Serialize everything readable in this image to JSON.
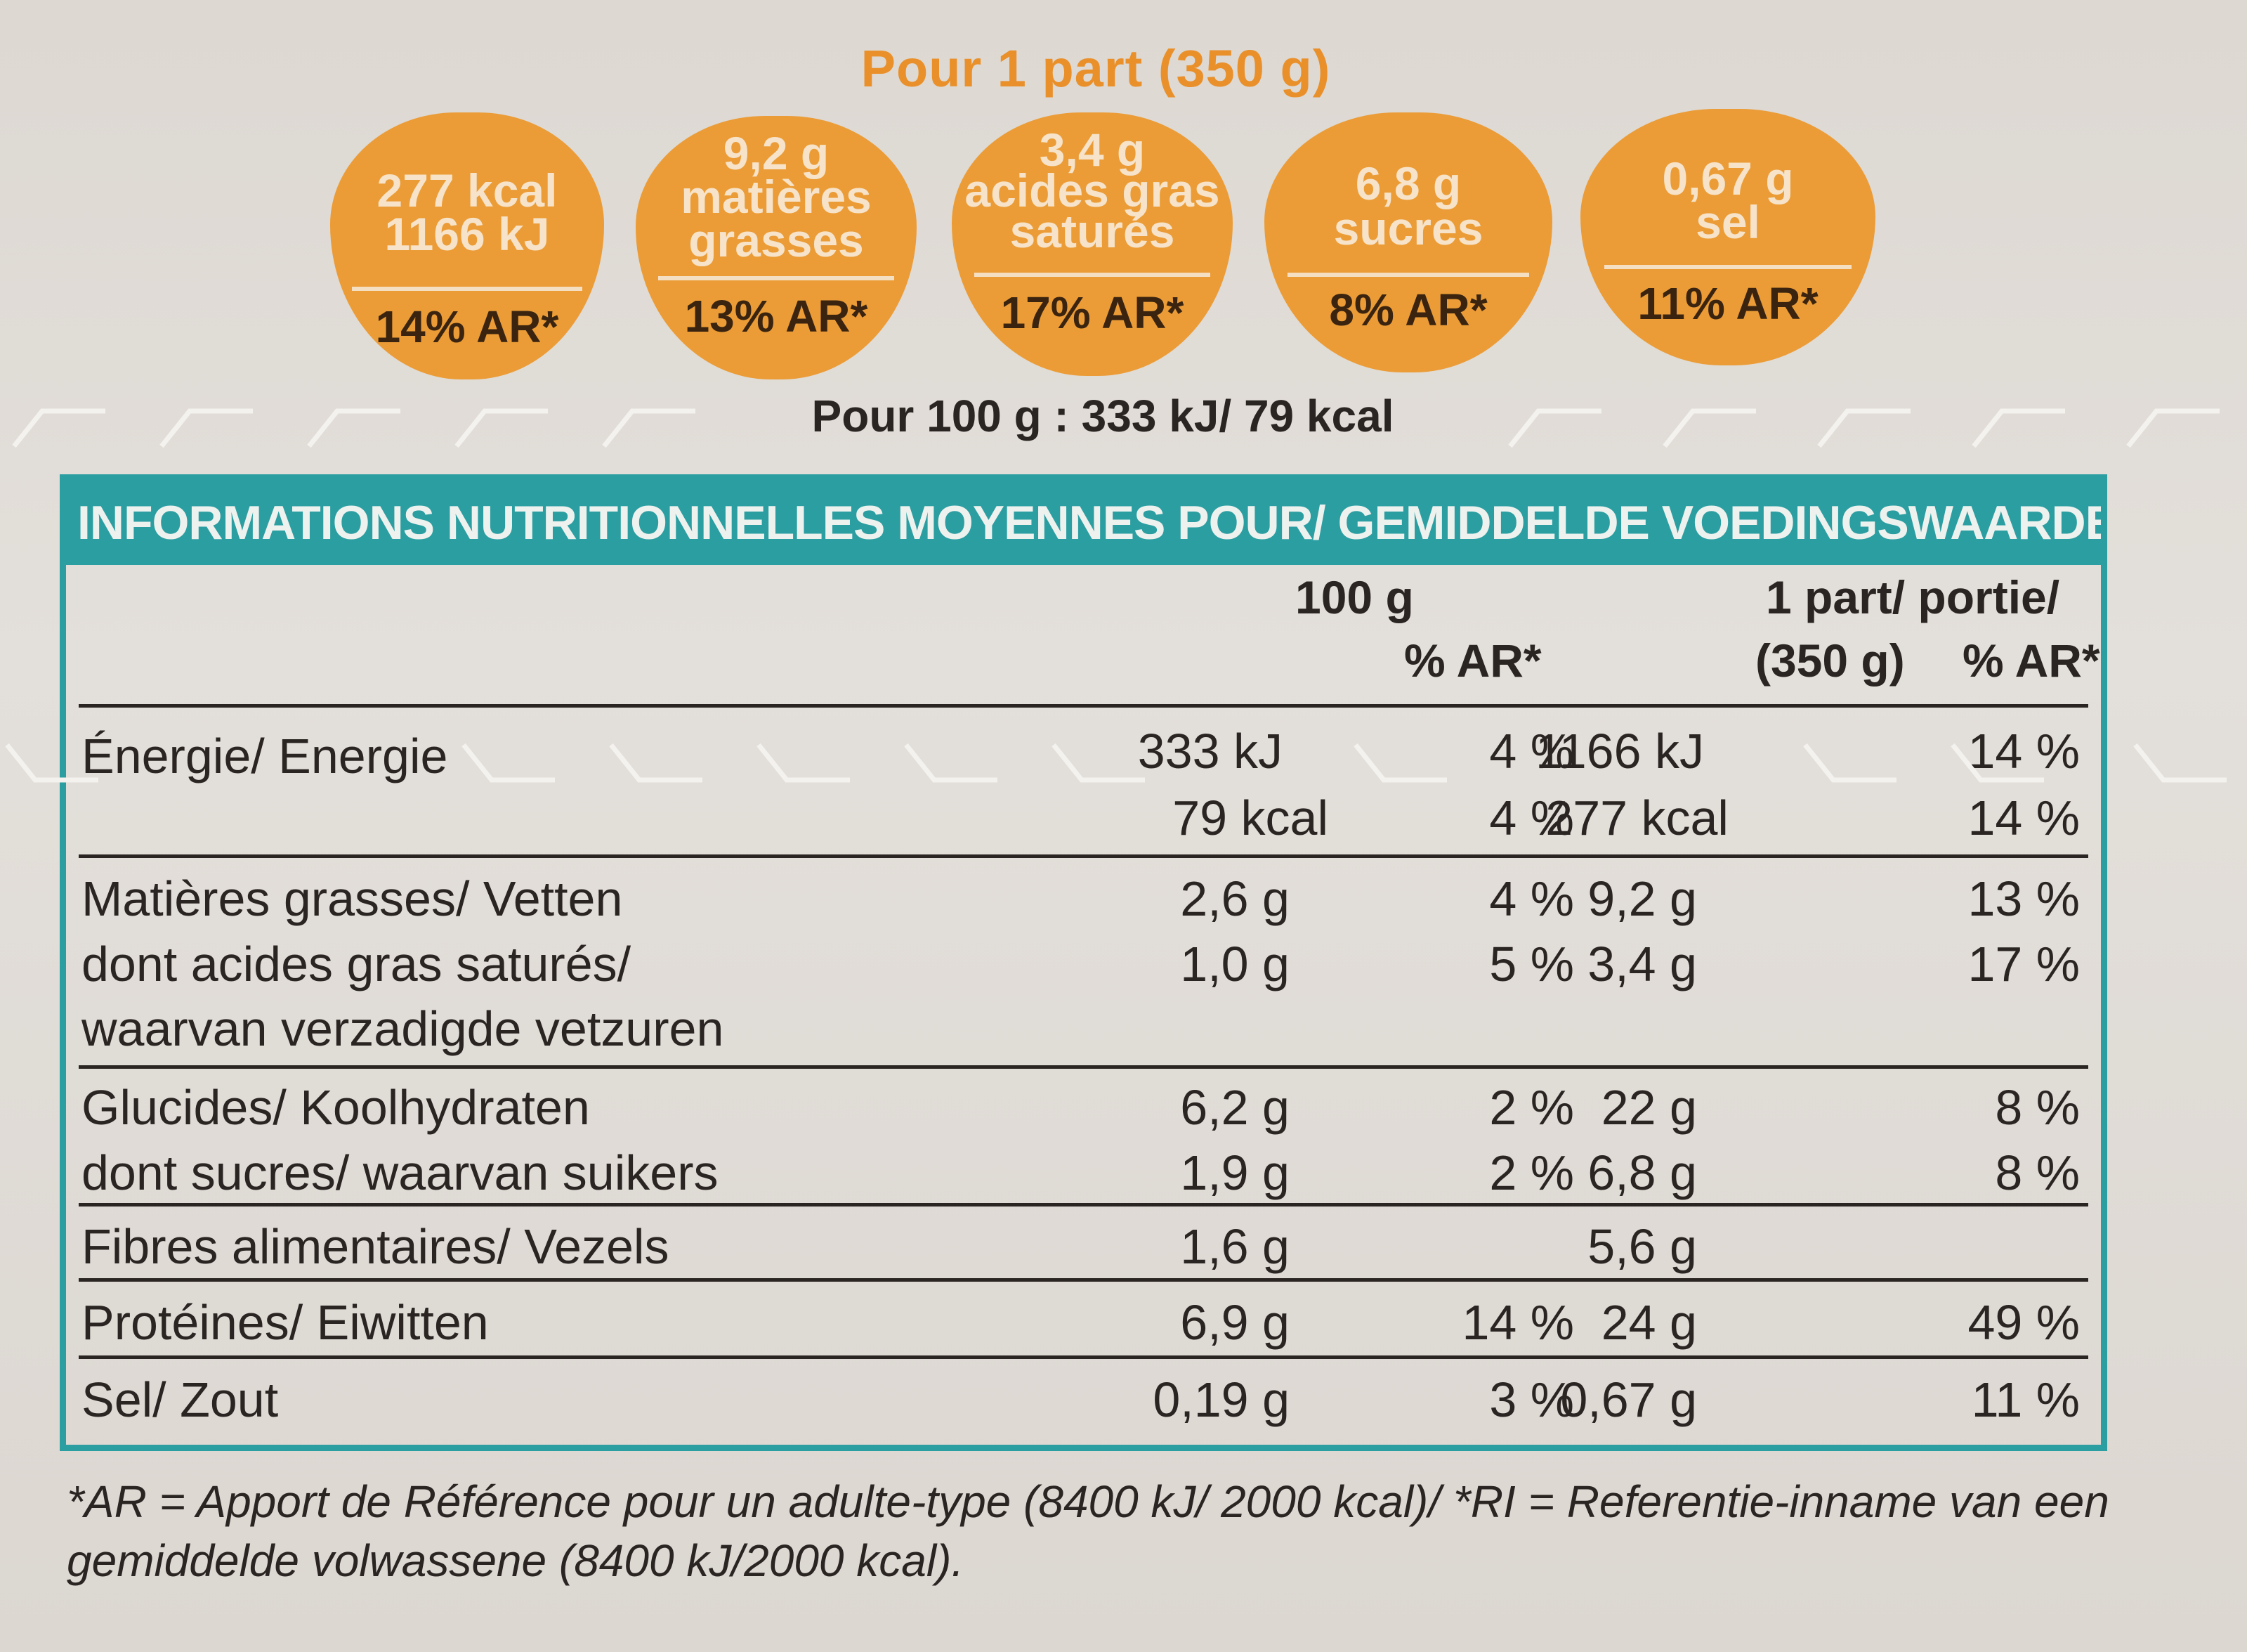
{
  "portion_title": "Pour 1 part (350 g)",
  "badges": [
    {
      "lines": [
        "277 kcal",
        "1166 kJ"
      ],
      "ar": "14% AR*"
    },
    {
      "lines": [
        "9,2 g",
        "matières",
        "grasses"
      ],
      "ar": "13% AR*"
    },
    {
      "lines": [
        "3,4 g",
        "acides gras",
        "saturés"
      ],
      "ar": "17% AR*"
    },
    {
      "lines": [
        "6,8 g",
        "sucres"
      ],
      "ar": "8% AR*"
    },
    {
      "lines": [
        "0,67 g",
        "sel"
      ],
      "ar": "11% AR*"
    }
  ],
  "per100_line": "Pour 100 g : 333 kJ/ 79 kcal",
  "table": {
    "header": "INFORMATIONS NUTRITIONNELLES MOYENNES POUR/ GEMIDDELDE VOEDINGSWAARDEN PER:",
    "col_100g": "100 g",
    "col_ar1": "% AR*",
    "col_part": "1 part/ portie/",
    "col_part2": "(350 g)",
    "col_ar2": "% AR*",
    "rows": [
      {
        "label": "Énergie/ Energie",
        "v100": "333 kJ",
        "ar100": "4 %",
        "vpart": "1166 kJ",
        "arpart": "14 %"
      },
      {
        "label": "",
        "v100": "79 kcal",
        "ar100": "4 %",
        "vpart": "277 kcal",
        "arpart": "14 %"
      },
      {
        "label": "Matières grasses/ Vetten",
        "v100": "2,6 g",
        "ar100": "4 %",
        "vpart": "9,2 g",
        "arpart": "13 %"
      },
      {
        "label": "dont acides gras saturés/",
        "v100": "1,0 g",
        "ar100": "5 %",
        "vpart": "3,4 g",
        "arpart": "17 %"
      },
      {
        "label": "waarvan verzadigde vetzuren",
        "v100": "",
        "ar100": "",
        "vpart": "",
        "arpart": ""
      },
      {
        "label": "Glucides/ Koolhydraten",
        "v100": "6,2 g",
        "ar100": "2 %",
        "vpart": "22 g",
        "arpart": "8 %"
      },
      {
        "label": "dont sucres/ waarvan suikers",
        "v100": "1,9 g",
        "ar100": "2 %",
        "vpart": "6,8 g",
        "arpart": "8 %"
      },
      {
        "label": "Fibres alimentaires/ Vezels",
        "v100": "1,6 g",
        "ar100": "",
        "vpart": "5,6 g",
        "arpart": ""
      },
      {
        "label": "Protéines/ Eiwitten",
        "v100": "6,9 g",
        "ar100": "14 %",
        "vpart": "24 g",
        "arpart": "49 %"
      },
      {
        "label": "Sel/ Zout",
        "v100": "0,19 g",
        "ar100": "3 %",
        "vpart": "0,67 g",
        "arpart": "11 %"
      }
    ]
  },
  "footnote_line1": "*AR = Apport de Référence pour un adulte-type (8400 kJ/ 2000 kcal)/ *RI = Referentie-inname van een",
  "footnote_line2": "gemiddelde volwassene (8400 kJ/2000 kcal).",
  "colors": {
    "orange": "#eb9c36",
    "teal": "#2b9ea1",
    "text": "#2a2522"
  }
}
